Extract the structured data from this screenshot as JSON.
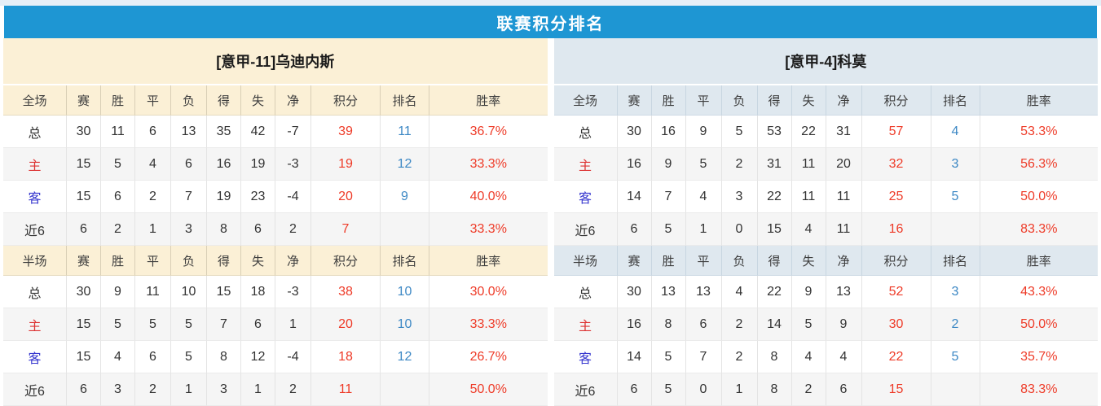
{
  "title": "联赛积分排名",
  "columns_full": [
    "全场",
    "赛",
    "胜",
    "平",
    "负",
    "得",
    "失",
    "净",
    "积分",
    "排名",
    "胜率"
  ],
  "columns_half": [
    "半场",
    "赛",
    "胜",
    "平",
    "负",
    "得",
    "失",
    "净",
    "积分",
    "排名",
    "胜率"
  ],
  "teams": [
    {
      "name": "[意甲-11]乌迪内斯",
      "full": [
        {
          "label": "总",
          "cells": [
            "30",
            "11",
            "6",
            "13",
            "35",
            "42",
            "-7"
          ],
          "points": "39",
          "rank": "11",
          "rate": "36.7%"
        },
        {
          "label": "主",
          "cells": [
            "15",
            "5",
            "4",
            "6",
            "16",
            "19",
            "-3"
          ],
          "points": "19",
          "rank": "12",
          "rate": "33.3%"
        },
        {
          "label": "客",
          "cells": [
            "15",
            "6",
            "2",
            "7",
            "19",
            "23",
            "-4"
          ],
          "points": "20",
          "rank": "9",
          "rate": "40.0%"
        },
        {
          "label": "近6",
          "cells": [
            "6",
            "2",
            "1",
            "3",
            "8",
            "6",
            "2"
          ],
          "points": "7",
          "rank": "",
          "rate": "33.3%"
        }
      ],
      "half": [
        {
          "label": "总",
          "cells": [
            "30",
            "9",
            "11",
            "10",
            "15",
            "18",
            "-3"
          ],
          "points": "38",
          "rank": "10",
          "rate": "30.0%"
        },
        {
          "label": "主",
          "cells": [
            "15",
            "5",
            "5",
            "5",
            "7",
            "6",
            "1"
          ],
          "points": "20",
          "rank": "10",
          "rate": "33.3%"
        },
        {
          "label": "客",
          "cells": [
            "15",
            "4",
            "6",
            "5",
            "8",
            "12",
            "-4"
          ],
          "points": "18",
          "rank": "12",
          "rate": "26.7%"
        },
        {
          "label": "近6",
          "cells": [
            "6",
            "3",
            "2",
            "1",
            "3",
            "1",
            "2"
          ],
          "points": "11",
          "rank": "",
          "rate": "50.0%"
        }
      ]
    },
    {
      "name": "[意甲-4]科莫",
      "full": [
        {
          "label": "总",
          "cells": [
            "30",
            "16",
            "9",
            "5",
            "53",
            "22",
            "31"
          ],
          "points": "57",
          "rank": "4",
          "rate": "53.3%"
        },
        {
          "label": "主",
          "cells": [
            "16",
            "9",
            "5",
            "2",
            "31",
            "11",
            "20"
          ],
          "points": "32",
          "rank": "3",
          "rate": "56.3%"
        },
        {
          "label": "客",
          "cells": [
            "14",
            "7",
            "4",
            "3",
            "22",
            "11",
            "11"
          ],
          "points": "25",
          "rank": "5",
          "rate": "50.0%"
        },
        {
          "label": "近6",
          "cells": [
            "6",
            "5",
            "1",
            "0",
            "15",
            "4",
            "11"
          ],
          "points": "16",
          "rank": "",
          "rate": "83.3%"
        }
      ],
      "half": [
        {
          "label": "总",
          "cells": [
            "30",
            "13",
            "13",
            "4",
            "22",
            "9",
            "13"
          ],
          "points": "52",
          "rank": "3",
          "rate": "43.3%"
        },
        {
          "label": "主",
          "cells": [
            "16",
            "8",
            "6",
            "2",
            "14",
            "5",
            "9"
          ],
          "points": "30",
          "rank": "2",
          "rate": "50.0%"
        },
        {
          "label": "客",
          "cells": [
            "14",
            "5",
            "7",
            "2",
            "8",
            "4",
            "4"
          ],
          "points": "22",
          "rank": "5",
          "rate": "35.7%"
        },
        {
          "label": "近6",
          "cells": [
            "6",
            "5",
            "0",
            "1",
            "8",
            "2",
            "6"
          ],
          "points": "15",
          "rank": "",
          "rate": "83.3%"
        }
      ]
    }
  ],
  "colors": {
    "title_bar": "#1e96d3",
    "top_strip": "#e6eff7",
    "left_panel_bg": "#fbf0d6",
    "right_panel_bg": "#dfe8ef",
    "row_alt_bg": "#f5f5f5",
    "value_red": "#ee3b28",
    "rank_blue": "#3b87c4",
    "home_label_red": "#dd3333",
    "away_label_blue": "#3737cf"
  }
}
